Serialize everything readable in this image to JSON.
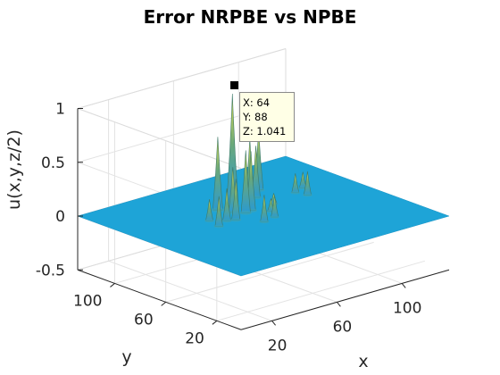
{
  "chart_data": {
    "type": "surface",
    "title": "Error NRPBE vs NPBE",
    "xlabel": "x",
    "ylabel": "y",
    "zlabel": "u(x,y,z/2)",
    "xlim": [
      1,
      129
    ],
    "ylim": [
      1,
      129
    ],
    "zlim": [
      -0.5,
      1
    ],
    "x_ticks": [
      "20",
      "60",
      "100"
    ],
    "y_ticks": [
      "20",
      "60",
      "100"
    ],
    "z_ticks": [
      "-0.5",
      "0",
      "0.5",
      "1"
    ],
    "x_tick_values": [
      20,
      60,
      100
    ],
    "y_tick_values": [
      20,
      60,
      100
    ],
    "z_tick_values": [
      -0.5,
      0,
      0.5,
      1
    ],
    "grid": true,
    "baseline_z": 0,
    "peaks": [
      {
        "x": 64,
        "y": 88,
        "z": 1.041
      },
      {
        "x": 55,
        "y": 88,
        "z": 0.68
      },
      {
        "x": 70,
        "y": 82,
        "z": 0.62
      },
      {
        "x": 62,
        "y": 75,
        "z": 0.58
      },
      {
        "x": 58,
        "y": 80,
        "z": 0.42
      },
      {
        "x": 48,
        "y": 72,
        "z": 0.3
      },
      {
        "x": 52,
        "y": 70,
        "z": 0.38
      },
      {
        "x": 66,
        "y": 76,
        "z": 0.55
      },
      {
        "x": 80,
        "y": 90,
        "z": 0.48
      },
      {
        "x": 88,
        "y": 98,
        "z": 0.55
      },
      {
        "x": 60,
        "y": 58,
        "z": 0.25
      },
      {
        "x": 68,
        "y": 60,
        "z": 0.2
      },
      {
        "x": 42,
        "y": 78,
        "z": 0.2
      },
      {
        "x": 40,
        "y": 68,
        "z": 0.28
      },
      {
        "x": 100,
        "y": 75,
        "z": 0.22
      },
      {
        "x": 98,
        "y": 82,
        "z": 0.18
      },
      {
        "x": 105,
        "y": 85,
        "z": 0.15
      },
      {
        "x": 72,
        "y": 68,
        "z": 0.12
      },
      {
        "x": 80,
        "y": 76,
        "z": 0.1
      }
    ],
    "colormap": "parula",
    "datatip": {
      "x_label": "X: 64",
      "y_label": "Y: 88",
      "z_label": "Z: 1.041"
    }
  },
  "colors": {
    "surface_flat": "#1ea4d7",
    "peak_top": "#e8e04a",
    "peak_mid": "#6aa87a",
    "grid": "#e3e3e3",
    "axis": "#262626",
    "datatip_bg": "#ffffe6"
  }
}
